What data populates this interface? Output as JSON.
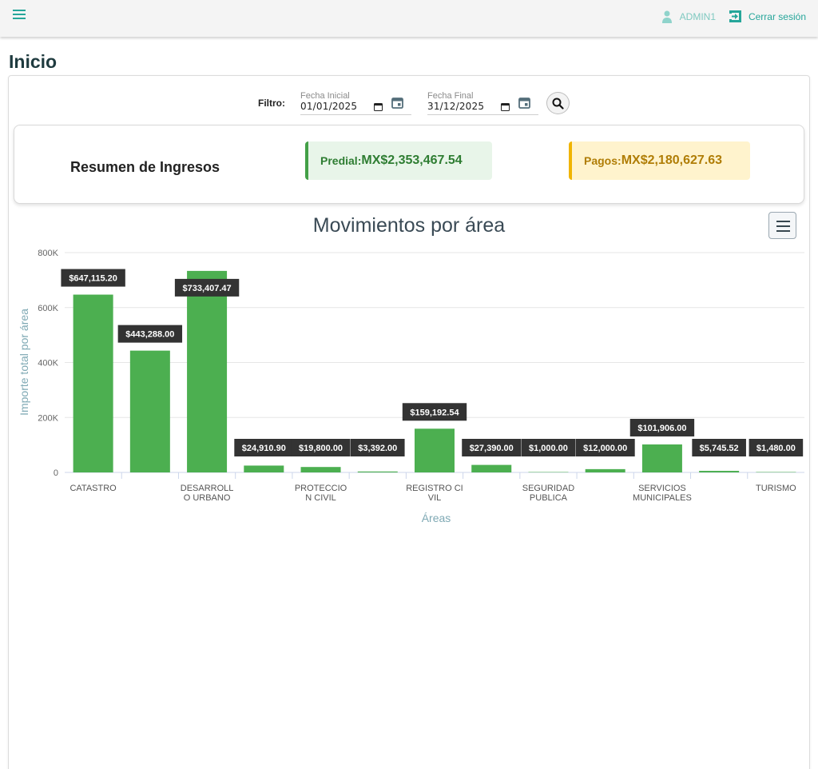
{
  "header": {
    "user_name": "ADMIN1",
    "logout_label": "Cerrar sesión"
  },
  "page": {
    "title": "Inicio"
  },
  "filter": {
    "label": "Filtro:",
    "start": {
      "label": "Fecha Inicial",
      "value": "01/01/2025"
    },
    "end": {
      "label": "Fecha Final",
      "value": "31/12/2025"
    }
  },
  "summary": {
    "title": "Resumen de Ingresos",
    "predial_label": "Predial:",
    "predial_value": "MX$2,353,467.54",
    "pagos_label": "Pagos:",
    "pagos_value": "MX$2,180,627.63"
  },
  "colors": {
    "accent": "#26a69a",
    "bar": "#4caf50",
    "predial": "#2e7d32",
    "pagos": "#b07d06"
  },
  "chart_data": {
    "type": "bar",
    "title": "Movimientos por área",
    "xlabel": "Áreas",
    "ylabel": "Importe total por área",
    "ylim": [
      0,
      800000
    ],
    "yticks": [
      "0",
      "200K",
      "400K",
      "600K",
      "800K"
    ],
    "categories": [
      "CATASTRO",
      "",
      "DESARROLLO URBANO",
      "",
      "PROTECCION CIVIL",
      "",
      "REGISTRO CIVIL",
      "",
      "SEGURIDAD PUBLICA",
      "",
      "SERVICIOS MUNICIPALES",
      "",
      "TURISMO"
    ],
    "category_lines": [
      [
        "CATASTRO"
      ],
      [],
      [
        "DESARROLL",
        "O URBANO"
      ],
      [],
      [
        "PROTECCIO",
        "N CIVIL"
      ],
      [],
      [
        "REGISTRO CI",
        "VIL"
      ],
      [],
      [
        "SEGURIDAD",
        "PUBLICA"
      ],
      [],
      [
        "SERVICIOS",
        "MUNICIPALES"
      ],
      [],
      [
        "TURISMO"
      ]
    ],
    "values": [
      647115.2,
      443288.0,
      733407.47,
      24910.9,
      19800.0,
      3392.0,
      159192.54,
      27390.0,
      1000.0,
      12000.0,
      101906.0,
      5745.52,
      1480.0
    ],
    "data_labels": [
      "$647,115.20",
      "$443,288.00",
      "$733,407.47",
      "$24,910.90",
      "$19,800.00",
      "$3,392.00",
      "$159,192.54",
      "$27,390.00",
      "$1,000.00",
      "$12,000.00",
      "$101,906.00",
      "$5,745.52",
      "$1,480.00"
    ],
    "grid": true,
    "legend": "none"
  }
}
